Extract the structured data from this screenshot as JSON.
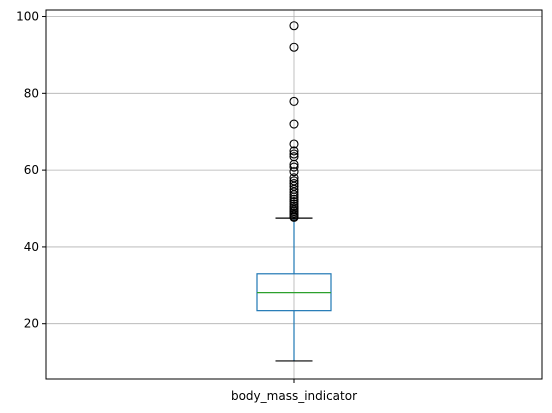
{
  "chart_data": {
    "type": "box",
    "categories": [
      "body_mass_indicator"
    ],
    "ylim": [
      5.6,
      101.7
    ],
    "yticks": [
      20,
      40,
      60,
      80,
      100
    ],
    "grid": true,
    "boxes": [
      {
        "name": "body_mass_indicator",
        "whisker_low": 10.3,
        "q1": 23.4,
        "median": 28.1,
        "q3": 33.0,
        "whisker_high": 47.5,
        "outliers": [
          97.6,
          92.0,
          77.9,
          72.0,
          66.8,
          65.0,
          64.2,
          63.5,
          61.5,
          60.8,
          59.6,
          58.0,
          57.2,
          56.5,
          55.8,
          55.0,
          54.3,
          53.6,
          53.0,
          52.4,
          51.8,
          51.2,
          50.6,
          50.1,
          49.6,
          49.2,
          48.8,
          48.4,
          48.0,
          47.7
        ]
      }
    ],
    "colors": {
      "box": "#1f77b4",
      "median": "#2ca02c",
      "whisker": "#1f77b4",
      "cap": "#000000",
      "flier": "#000000",
      "grid": "#b0b0b0",
      "axis": "#000000"
    }
  }
}
